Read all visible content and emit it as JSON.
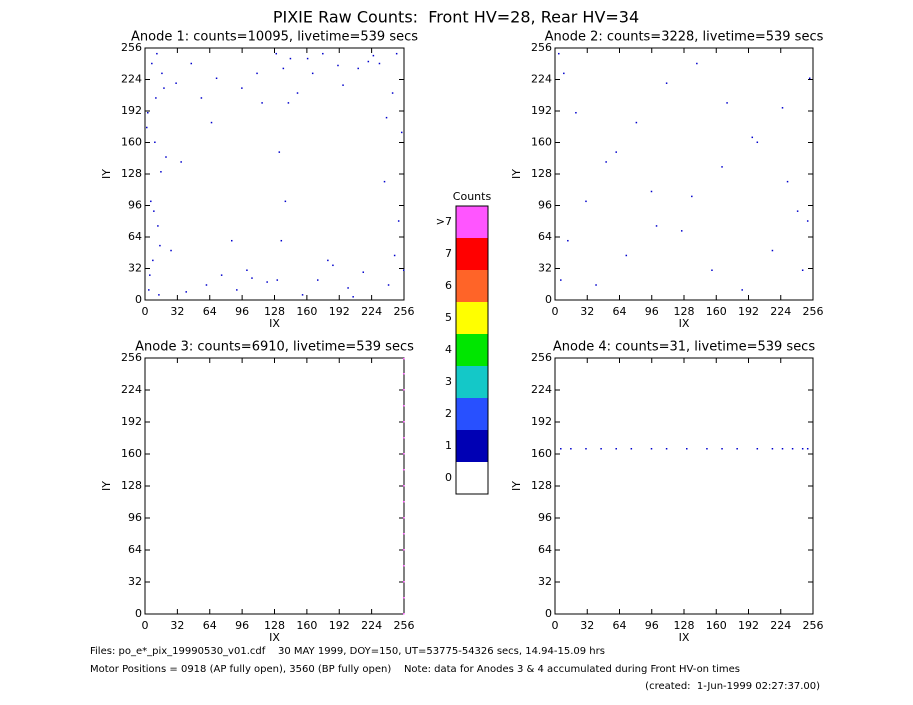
{
  "header": {
    "title": "PIXIE Raw Counts:  Front HV=28, Rear HV=34"
  },
  "chart_data": [
    {
      "type": "scatter",
      "title": "Anode 1: counts=10095, livetime=539 secs",
      "xlabel": "IX",
      "ylabel": "IY",
      "color": "#0000cc",
      "x": [
        3,
        7,
        12,
        5,
        15,
        9,
        2,
        18,
        6,
        11,
        4,
        14,
        8,
        20,
        1,
        10,
        16,
        13,
        130,
        134,
        138,
        132,
        141,
        136,
        129,
        143,
        240,
        246,
        250,
        236,
        253,
        244,
        231,
        248,
        255,
        238,
        60,
        75,
        90,
        100,
        170,
        185,
        200,
        215,
        45,
        110,
        160,
        175,
        190,
        220,
        30,
        55,
        70,
        95,
        115,
        150,
        165,
        195,
        210,
        225,
        25,
        40,
        85,
        105,
        120,
        155,
        180,
        205,
        35,
        65
      ],
      "y": [
        10,
        40,
        75,
        100,
        130,
        160,
        190,
        215,
        240,
        250,
        25,
        55,
        90,
        145,
        175,
        205,
        230,
        5,
        20,
        60,
        100,
        150,
        200,
        235,
        250,
        245,
        15,
        45,
        80,
        120,
        170,
        210,
        240,
        250,
        30,
        185,
        15,
        25,
        10,
        30,
        20,
        35,
        12,
        28,
        240,
        230,
        245,
        250,
        238,
        242,
        220,
        205,
        225,
        215,
        200,
        210,
        230,
        218,
        235,
        248,
        50,
        8,
        60,
        22,
        18,
        5,
        40,
        3,
        140,
        180
      ],
      "xlim": [
        0,
        256
      ],
      "ylim": [
        0,
        256
      ],
      "xticks": [
        0,
        32,
        64,
        96,
        128,
        160,
        192,
        224,
        256
      ],
      "yticks": [
        0,
        32,
        64,
        96,
        128,
        160,
        192,
        224,
        256
      ]
    },
    {
      "type": "scatter",
      "title": "Anode 2: counts=3228, livetime=539 secs",
      "xlabel": "IX",
      "ylabel": "IY",
      "color": "#0000cc",
      "x": [
        5,
        12,
        30,
        50,
        80,
        110,
        140,
        170,
        200,
        230,
        250,
        245,
        8,
        20,
        60,
        95,
        125,
        155,
        185,
        215,
        240,
        3,
        40,
        70,
        100,
        135,
        165,
        195,
        225,
        252
      ],
      "y": [
        20,
        60,
        100,
        140,
        180,
        220,
        240,
        200,
        160,
        120,
        80,
        30,
        230,
        190,
        150,
        110,
        70,
        30,
        10,
        50,
        90,
        250,
        15,
        45,
        75,
        105,
        135,
        165,
        195,
        225
      ],
      "xlim": [
        0,
        256
      ],
      "ylim": [
        0,
        256
      ],
      "xticks": [
        0,
        32,
        64,
        96,
        128,
        160,
        192,
        224,
        256
      ],
      "yticks": [
        0,
        32,
        64,
        96,
        128,
        160,
        192,
        224,
        256
      ]
    },
    {
      "type": "scatter",
      "title": "Anode 3: counts=6910, livetime=539 secs",
      "xlabel": "IX",
      "ylabel": "IY",
      "color": "#ff55ff",
      "x": [
        255,
        255,
        255,
        255,
        255,
        255,
        255,
        255,
        255,
        255,
        255,
        255,
        255,
        255,
        255,
        255,
        255
      ],
      "y": [
        0,
        16,
        32,
        48,
        64,
        80,
        96,
        112,
        128,
        144,
        160,
        176,
        192,
        208,
        224,
        240,
        255
      ],
      "xlim": [
        0,
        256
      ],
      "ylim": [
        0,
        256
      ],
      "xticks": [
        0,
        32,
        64,
        96,
        128,
        160,
        192,
        224,
        256
      ],
      "yticks": [
        0,
        32,
        64,
        96,
        128,
        160,
        192,
        224,
        256
      ]
    },
    {
      "type": "scatter",
      "title": "Anode 4: counts=31, livetime=539 secs",
      "xlabel": "IX",
      "ylabel": "IY",
      "color": "#0000cc",
      "x": [
        5,
        15,
        30,
        45,
        60,
        75,
        95,
        110,
        130,
        150,
        165,
        180,
        200,
        215,
        225,
        235,
        245,
        250
      ],
      "y": [
        165,
        165,
        165,
        165,
        165,
        165,
        165,
        165,
        165,
        165,
        165,
        165,
        165,
        165,
        165,
        165,
        165,
        165
      ],
      "xlim": [
        0,
        256
      ],
      "ylim": [
        0,
        256
      ],
      "xticks": [
        0,
        32,
        64,
        96,
        128,
        160,
        192,
        224,
        256
      ],
      "yticks": [
        0,
        32,
        64,
        96,
        128,
        160,
        192,
        224,
        256
      ]
    }
  ],
  "colorbar": {
    "title": "Counts",
    "labels": [
      "0",
      "1",
      "2",
      "3",
      "4",
      "5",
      "6",
      "7",
      ">7"
    ],
    "colors": [
      "#ffffff",
      "#0000b4",
      "#2850ff",
      "#14c8c8",
      "#00e600",
      "#ffff00",
      "#ff6428",
      "#ff0000",
      "#ff55ff"
    ]
  },
  "footer": {
    "files": "Files: po_e*_pix_19990530_v01.cdf    30 MAY 1999, DOY=150, UT=53775-54326 secs, 14.94-15.09 hrs",
    "motor": "Motor Positions = 0918 (AP fully open), 3560 (BP fully open)    Note: data for Anodes 3 & 4 accumulated during Front HV-on times",
    "created": "(created:  1-Jun-1999 02:27:37.00)"
  }
}
